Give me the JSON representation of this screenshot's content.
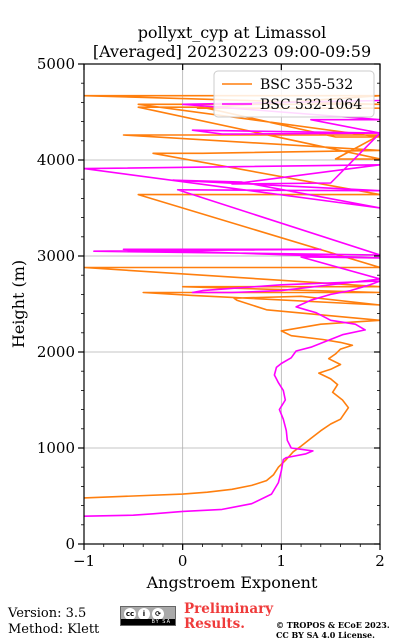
{
  "chart_data": {
    "type": "line",
    "title": "pollyxt_cyp at Limassol",
    "subtitle": "[Averaged] 20230223 09:00-09:59",
    "xlabel": "Angstroem Exponent",
    "ylabel": "Height (m)",
    "xlim": [
      -1,
      2
    ],
    "ylim": [
      0,
      5000
    ],
    "xticks": [
      "−1",
      "0",
      "1",
      "2"
    ],
    "yticks": [
      "0",
      "1000",
      "2000",
      "3000",
      "4000",
      "5000"
    ],
    "grid": true,
    "legend_position": "top-right",
    "series": [
      {
        "name": "BSC 355-532",
        "color": "#ff7f0e",
        "x": [
          -1.0,
          -0.5,
          0.0,
          0.25,
          0.5,
          0.7,
          0.85,
          0.92,
          0.97,
          1.05,
          1.12,
          1.2,
          1.3,
          1.4,
          1.5,
          1.6,
          1.68,
          1.62,
          1.52,
          1.57,
          1.5,
          1.38,
          1.5,
          1.6,
          1.48,
          1.55,
          1.6,
          1.72,
          1.6,
          1.42,
          1.1,
          1.0,
          1.4,
          2.0,
          0.85,
          0.55,
          0.52,
          1.2,
          2.0,
          0.1,
          -0.4,
          2.0,
          0.0,
          2.0,
          -1.0,
          0.0,
          2.0,
          -0.45,
          2.0,
          -0.3,
          0.2,
          2.0,
          -0.6,
          2.0,
          1.55,
          2.0,
          -0.45,
          0.2,
          1.55,
          2.0,
          -0.45,
          2.0,
          -1.0,
          1.55,
          2.0,
          0.15,
          2.0
        ],
        "y": [
          480,
          500,
          520,
          540,
          570,
          610,
          660,
          720,
          800,
          880,
          960,
          1020,
          1100,
          1180,
          1250,
          1300,
          1420,
          1500,
          1580,
          1660,
          1720,
          1780,
          1820,
          1870,
          1930,
          1980,
          2030,
          2070,
          2100,
          2130,
          2170,
          2220,
          2290,
          2330,
          2440,
          2540,
          2560,
          2580,
          2490,
          2590,
          2620,
          2620,
          2680,
          2680,
          2880,
          2880,
          2880,
          3640,
          3640,
          4070,
          4070,
          4100,
          4260,
          4260,
          4010,
          4010,
          4550,
          4550,
          4240,
          4240,
          4580,
          4580,
          4670,
          4670,
          4670,
          4540,
          4540
        ]
      },
      {
        "name": "BSC 532-1064",
        "color": "#ff00ff",
        "x": [
          -1.0,
          -0.5,
          -0.3,
          0.0,
          0.4,
          0.7,
          0.9,
          0.97,
          1.0,
          1.02,
          1.05,
          1.25,
          1.32,
          1.1,
          1.06,
          1.05,
          1.02,
          0.98,
          1.04,
          1.02,
          0.97,
          0.93,
          0.95,
          1.0,
          1.1,
          1.15,
          1.3,
          1.45,
          1.62,
          1.85,
          1.75,
          1.5,
          1.35,
          1.25,
          1.15,
          1.3,
          1.5,
          1.7,
          1.9,
          2.0,
          1.0,
          0.2,
          0.1,
          0.5,
          1.0,
          2.0,
          1.2,
          2.0,
          -0.6,
          1.4,
          -0.9,
          2.0,
          -0.05,
          2.0,
          -0.1,
          0.6,
          2.0,
          -1.0,
          2.0,
          0.5,
          1.5,
          2.0,
          0.1,
          0.4,
          2.0,
          1.3,
          2.0,
          0.0,
          2.0
        ],
        "y": [
          290,
          300,
          315,
          340,
          360,
          420,
          520,
          640,
          760,
          880,
          900,
          940,
          970,
          1000,
          1080,
          1180,
          1300,
          1400,
          1500,
          1600,
          1680,
          1760,
          1840,
          1880,
          1940,
          2010,
          2050,
          2110,
          2180,
          2230,
          2290,
          2330,
          2410,
          2440,
          2470,
          2540,
          2600,
          2640,
          2700,
          2740,
          2700,
          2640,
          2620,
          2620,
          2640,
          2760,
          2990,
          2980,
          3070,
          3070,
          3050,
          3010,
          3690,
          3680,
          3790,
          3770,
          3500,
          3910,
          3950,
          3750,
          3760,
          4280,
          4310,
          4270,
          4280,
          4420,
          4420,
          4580,
          4620
        ]
      }
    ]
  },
  "footer": {
    "version": "Version: 3.5",
    "method": "Method: Klett",
    "license_badge": {
      "cc": "cc",
      "by": "i",
      "sa": "⟳",
      "sub": "BY SA"
    },
    "preliminary_1": "Preliminary",
    "preliminary_2": "Results.",
    "copyright_1": "© TROPOS & ECoE 2023.",
    "copyright_2": "CC BY SA 4.0 License."
  }
}
